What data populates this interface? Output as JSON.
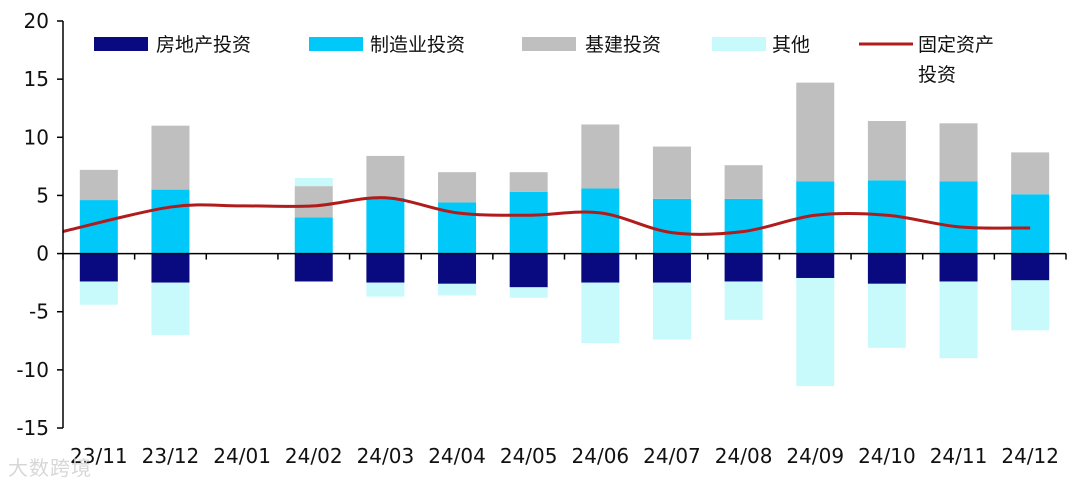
{
  "chart_data": {
    "type": "bar",
    "stacking": "diverging-stacked",
    "title": "",
    "xlabel": "",
    "ylabel": "",
    "ylim": [
      -15,
      20
    ],
    "yticks": [
      -15,
      -10,
      -5,
      0,
      5,
      10,
      15,
      20
    ],
    "grid": false,
    "legend_position": "top",
    "categories": [
      "23/11",
      "23/12",
      "24/01",
      "24/02",
      "24/03",
      "24/04",
      "24/05",
      "24/06",
      "24/07",
      "24/08",
      "24/09",
      "24/10",
      "24/11",
      "24/12"
    ],
    "series": [
      {
        "name": "房地产投资",
        "kind": "bar",
        "color": "#0a0a80",
        "values": [
          -2.4,
          -2.5,
          null,
          -2.4,
          -2.5,
          -2.6,
          -2.9,
          -2.5,
          -2.5,
          -2.4,
          -2.1,
          -2.6,
          -2.4,
          -2.3
        ]
      },
      {
        "name": "制造业投资",
        "kind": "bar",
        "color": "#00c8f8",
        "values": [
          4.6,
          5.5,
          null,
          3.1,
          4.8,
          4.4,
          5.3,
          5.6,
          4.7,
          4.7,
          6.2,
          6.3,
          6.2,
          5.1
        ]
      },
      {
        "name": "基建投资",
        "kind": "bar",
        "color": "#bfbfbf",
        "values": [
          2.6,
          5.5,
          null,
          2.7,
          3.6,
          2.6,
          1.7,
          5.5,
          4.5,
          2.9,
          8.5,
          5.1,
          5.0,
          3.6
        ]
      },
      {
        "name": "其他",
        "kind": "bar",
        "color": "#c8fafc",
        "values": [
          -2.0,
          -4.5,
          null,
          0.7,
          -1.2,
          -1.0,
          -0.9,
          -5.2,
          -4.9,
          -3.3,
          -9.3,
          -5.5,
          -6.6,
          -4.3
        ]
      },
      {
        "name": "固定资产投资",
        "kind": "line",
        "color": "#b01c1c",
        "values": [
          1.9,
          4.0,
          4.1,
          4.1,
          4.8,
          3.5,
          3.3,
          3.5,
          1.8,
          1.9,
          3.3,
          3.3,
          2.3,
          2.2
        ]
      }
    ]
  },
  "watermark": "大数跨境"
}
